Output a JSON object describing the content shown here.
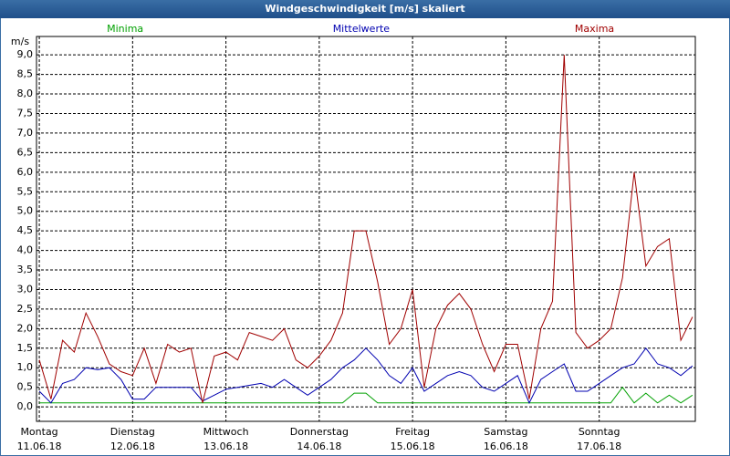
{
  "chart_data": {
    "type": "line",
    "title": "Windgeschwindigkeit [m/s] skaliert",
    "y_unit": "m/s",
    "x": [
      0,
      0.125,
      0.25,
      0.375,
      0.5,
      0.625,
      0.75,
      0.875,
      1,
      1.125,
      1.25,
      1.375,
      1.5,
      1.625,
      1.75,
      1.875,
      2,
      2.125,
      2.25,
      2.375,
      2.5,
      2.625,
      2.75,
      2.875,
      3,
      3.125,
      3.25,
      3.375,
      3.5,
      3.625,
      3.75,
      3.875,
      4,
      4.125,
      4.25,
      4.375,
      4.5,
      4.625,
      4.75,
      4.875,
      5,
      5.125,
      5.25,
      5.375,
      5.5,
      5.625,
      5.75,
      5.875,
      6,
      6.125,
      6.25,
      6.375,
      6.5,
      6.625,
      6.75,
      6.875,
      7
    ],
    "series": [
      {
        "name": "Minima",
        "color": "#00a000",
        "legend_x": 0.92,
        "values": [
          0.1,
          0.1,
          0.1,
          0.1,
          0.1,
          0.1,
          0.1,
          0.1,
          0.1,
          0.1,
          0.1,
          0.1,
          0.1,
          0.1,
          0.1,
          0.1,
          0.1,
          0.1,
          0.1,
          0.1,
          0.1,
          0.1,
          0.1,
          0.1,
          0.1,
          0.1,
          0.1,
          0.35,
          0.35,
          0.1,
          0.1,
          0.1,
          0.1,
          0.1,
          0.1,
          0.1,
          0.1,
          0.1,
          0.1,
          0.1,
          0.1,
          0.1,
          0.1,
          0.1,
          0.1,
          0.1,
          0.1,
          0.1,
          0.1,
          0.1,
          0.5,
          0.1,
          0.35,
          0.1,
          0.3,
          0.1,
          0.3
        ]
      },
      {
        "name": "Mittelwerte",
        "color": "#0000b0",
        "legend_x": 3.45,
        "values": [
          0.4,
          0.1,
          0.6,
          0.7,
          1.0,
          0.95,
          1.0,
          0.7,
          0.2,
          0.2,
          0.5,
          0.5,
          0.5,
          0.5,
          0.15,
          0.3,
          0.45,
          0.5,
          0.55,
          0.6,
          0.5,
          0.7,
          0.5,
          0.3,
          0.5,
          0.7,
          1.0,
          1.2,
          1.5,
          1.2,
          0.8,
          0.6,
          1.0,
          0.4,
          0.6,
          0.8,
          0.9,
          0.8,
          0.5,
          0.4,
          0.6,
          0.8,
          0.1,
          0.7,
          0.9,
          1.1,
          0.4,
          0.4,
          0.6,
          0.8,
          1.0,
          1.1,
          1.5,
          1.1,
          1.0,
          0.8,
          1.05
        ]
      },
      {
        "name": "Maxima",
        "color": "#a00000",
        "legend_x": 5.95,
        "values": [
          1.2,
          0.2,
          1.7,
          1.4,
          2.4,
          1.8,
          1.1,
          0.9,
          0.8,
          1.5,
          0.6,
          1.6,
          1.4,
          1.5,
          0.1,
          1.3,
          1.4,
          1.2,
          1.9,
          1.8,
          1.7,
          2.0,
          1.2,
          1.0,
          1.3,
          1.7,
          2.4,
          4.5,
          4.5,
          3.2,
          1.6,
          2.0,
          3.0,
          0.5,
          2.0,
          2.6,
          2.9,
          2.5,
          1.6,
          0.9,
          1.6,
          1.6,
          0.2,
          2.0,
          2.7,
          9.0,
          1.9,
          1.5,
          1.7,
          2.0,
          3.3,
          6.0,
          3.6,
          4.1,
          4.3,
          1.7,
          2.3
        ]
      }
    ],
    "xlim": [
      -0.03,
      7.03
    ],
    "ylim": [
      -0.37,
      9.47
    ],
    "xticks": [
      {
        "value": 0,
        "label": "Montag",
        "date": "11.06.18"
      },
      {
        "value": 1,
        "label": "Dienstag",
        "date": "12.06.18"
      },
      {
        "value": 2,
        "label": "Mittwoch",
        "date": "13.06.18"
      },
      {
        "value": 3,
        "label": "Donnerstag",
        "date": "14.06.18"
      },
      {
        "value": 4,
        "label": "Freitag",
        "date": "15.06.18"
      },
      {
        "value": 5,
        "label": "Samstag",
        "date": "16.06.18"
      },
      {
        "value": 6,
        "label": "Sonntag",
        "date": "17.06.18"
      }
    ],
    "yticks": [
      {
        "value": 0,
        "label": "0,0"
      },
      {
        "value": 0.5,
        "label": "0,5"
      },
      {
        "value": 1,
        "label": "1,0"
      },
      {
        "value": 1.5,
        "label": "1,5"
      },
      {
        "value": 2,
        "label": "2,0"
      },
      {
        "value": 2.5,
        "label": "2,5"
      },
      {
        "value": 3,
        "label": "3,0"
      },
      {
        "value": 3.5,
        "label": "3,5"
      },
      {
        "value": 4,
        "label": "4,0"
      },
      {
        "value": 4.5,
        "label": "4,5"
      },
      {
        "value": 5,
        "label": "5,0"
      },
      {
        "value": 5.5,
        "label": "5,5"
      },
      {
        "value": 6,
        "label": "6,0"
      },
      {
        "value": 6.5,
        "label": "6,5"
      },
      {
        "value": 7,
        "label": "7,0"
      },
      {
        "value": 7.5,
        "label": "7,5"
      },
      {
        "value": 8,
        "label": "8,0"
      },
      {
        "value": 8.5,
        "label": "8,5"
      },
      {
        "value": 9,
        "label": "9,0"
      }
    ],
    "grid": true
  }
}
